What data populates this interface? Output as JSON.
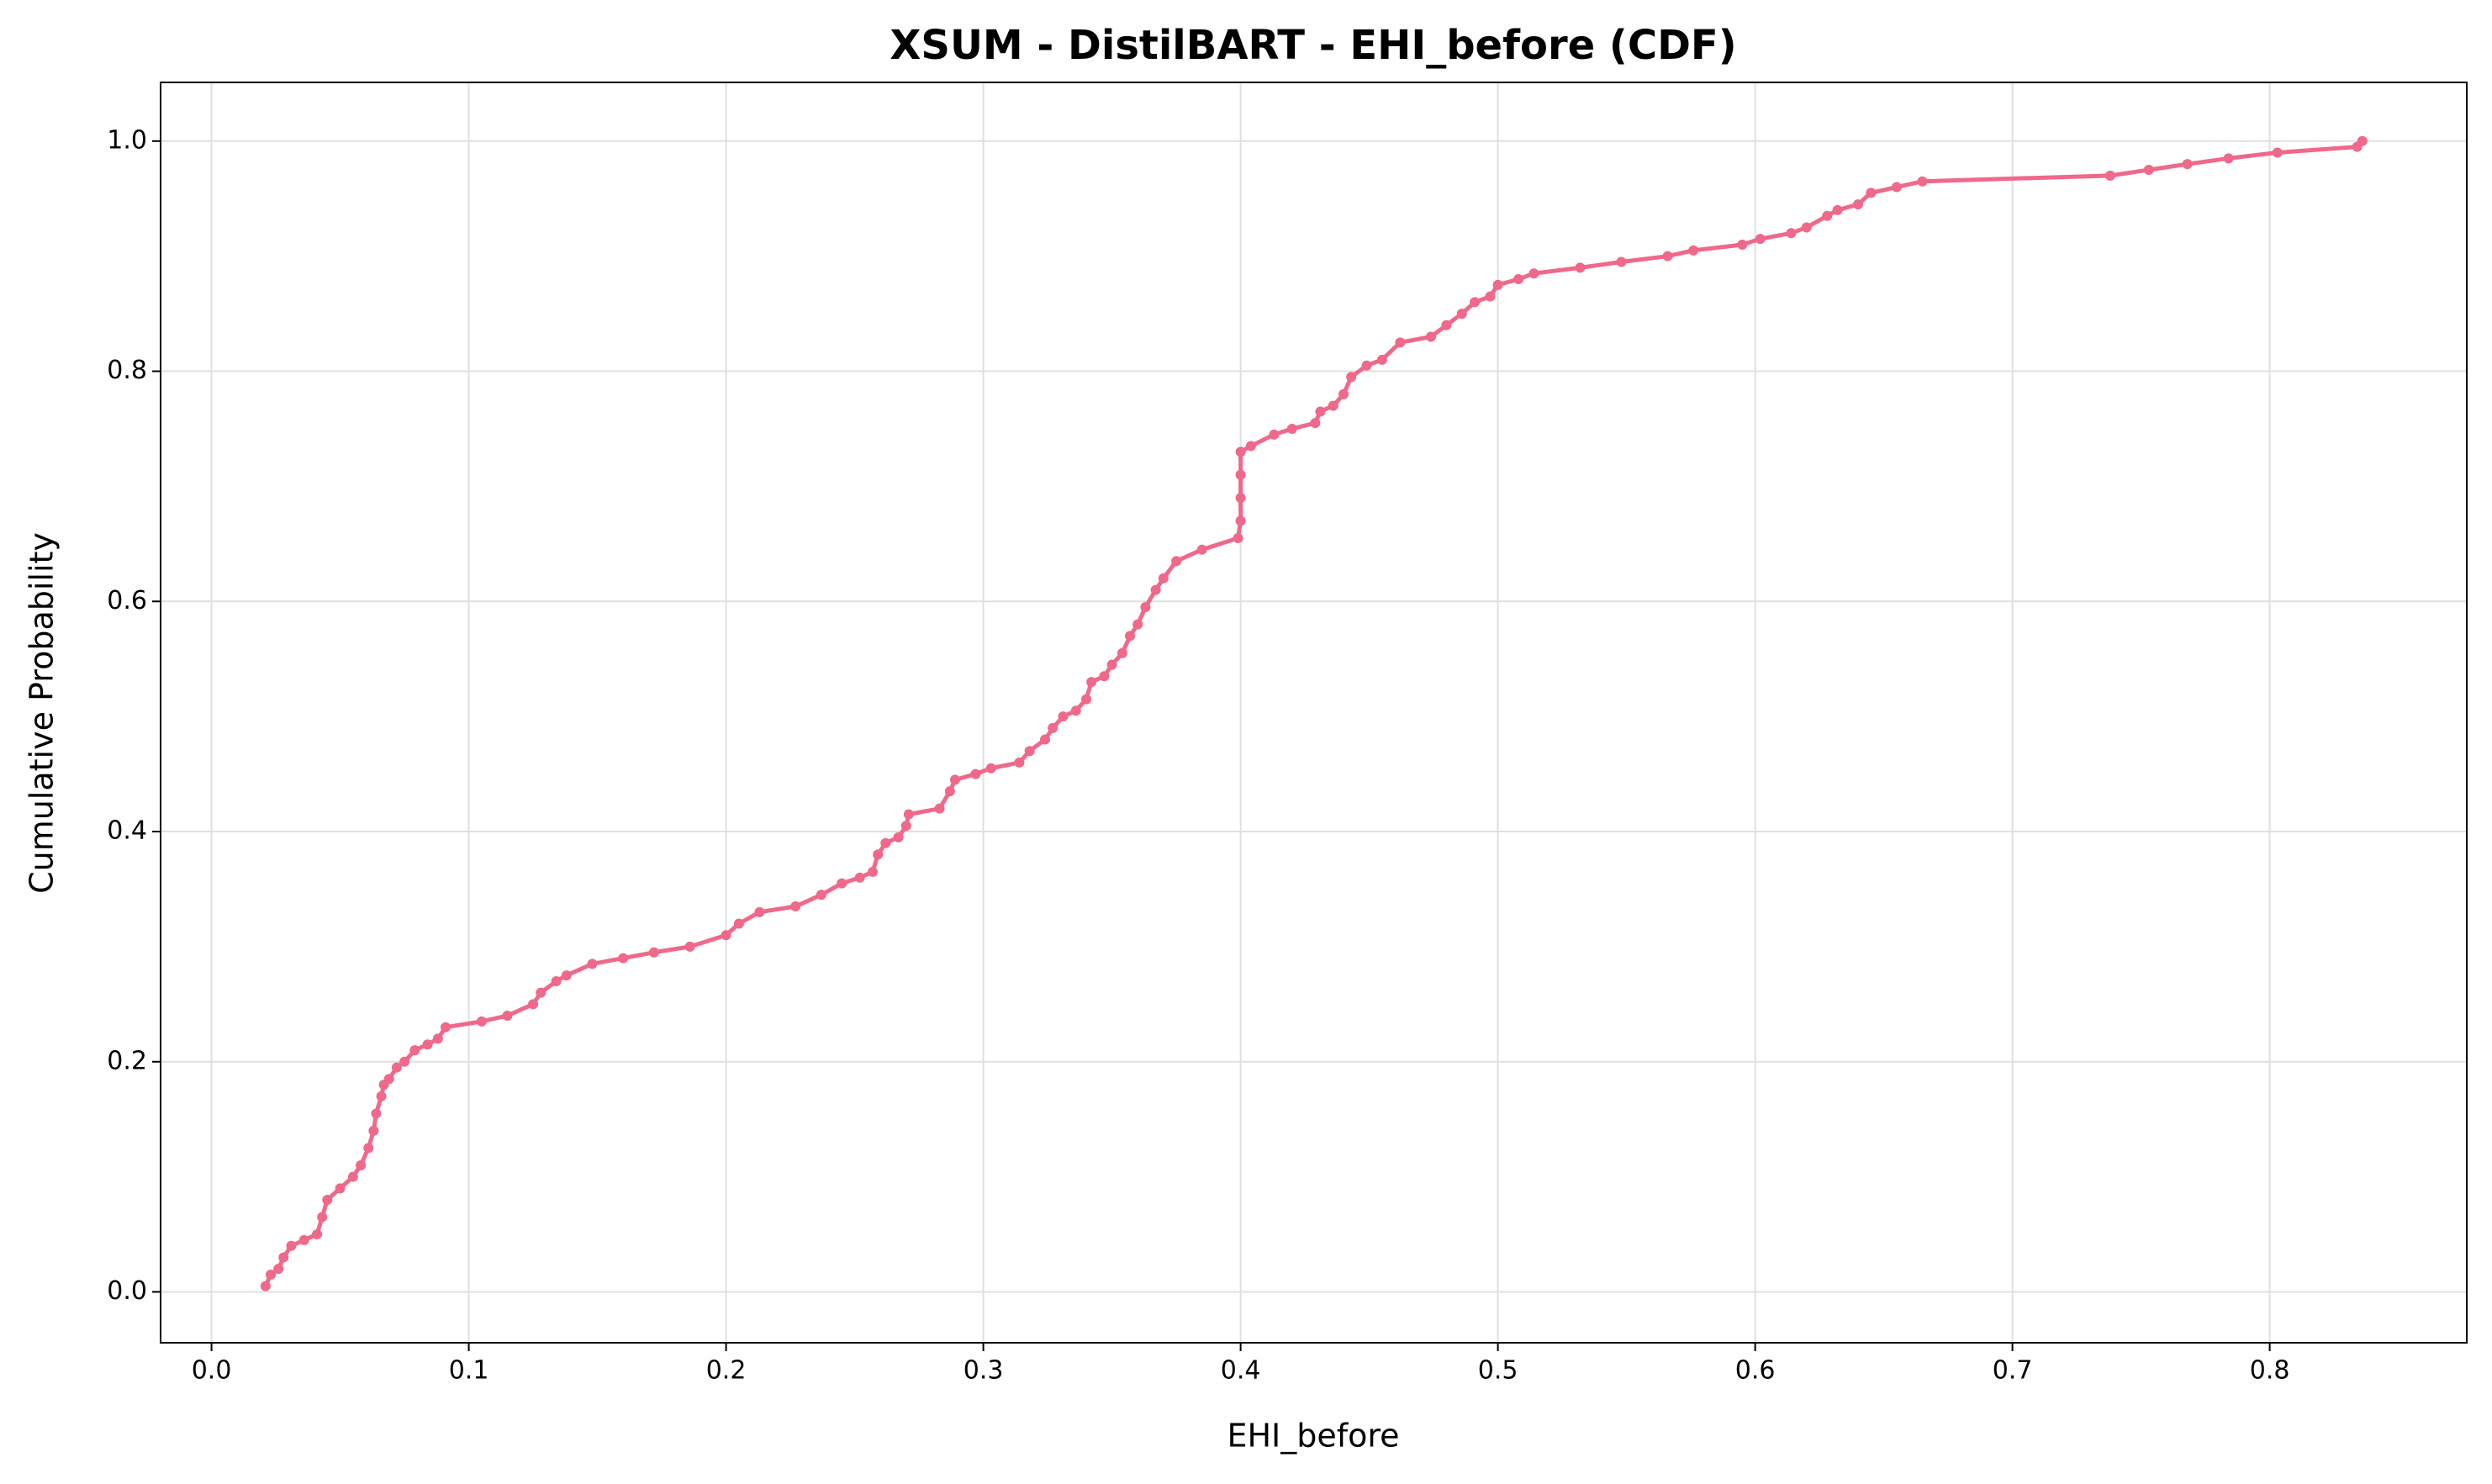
{
  "chart_data": {
    "type": "line",
    "title": "XSUM - DistilBART - EHI_before (CDF)",
    "x_label": "EHI_before",
    "y_label": "Cumulative Probability",
    "grid": true,
    "markers": true,
    "xlim": [
      -0.0198,
      0.8766
    ],
    "ylim": [
      -0.0442,
      1.051
    ],
    "xticks": [
      {
        "value": 0,
        "label": "0.0"
      },
      0.1,
      0.2,
      0.3,
      0.4,
      0.5,
      0.6,
      0.7,
      0.8
    ],
    "yticks": [
      {
        "value": 0,
        "label": "0.0"
      },
      0.2,
      0.4,
      0.6,
      0.8,
      {
        "value": 1,
        "label": "1.0"
      }
    ],
    "series": [
      {
        "color": "#f0688a",
        "x": [
          0.021,
          0.023,
          0.026,
          0.028,
          0.031,
          0.036,
          0.041,
          0.043,
          0.045,
          0.05,
          0.055,
          0.058,
          0.061,
          0.063,
          0.064,
          0.066,
          0.067,
          0.069,
          0.072,
          0.075,
          0.079,
          0.084,
          0.088,
          0.091,
          0.105,
          0.115,
          0.125,
          0.128,
          0.134,
          0.138,
          0.148,
          0.16,
          0.172,
          0.186,
          0.2,
          0.205,
          0.213,
          0.227,
          0.237,
          0.245,
          0.252,
          0.257,
          0.259,
          0.262,
          0.267,
          0.27,
          0.271,
          0.283,
          0.287,
          0.289,
          0.297,
          0.303,
          0.314,
          0.318,
          0.324,
          0.327,
          0.331,
          0.336,
          0.34,
          0.342,
          0.347,
          0.35,
          0.354,
          0.357,
          0.36,
          0.363,
          0.367,
          0.37,
          0.375,
          0.385,
          0.399,
          0.4,
          0.4,
          0.4,
          0.4,
          0.404,
          0.413,
          0.42,
          0.429,
          0.431,
          0.436,
          0.44,
          0.443,
          0.449,
          0.455,
          0.462,
          0.474,
          0.48,
          0.486,
          0.491,
          0.497,
          0.5,
          0.508,
          0.514,
          0.532,
          0.548,
          0.566,
          0.576,
          0.595,
          0.602,
          0.614,
          0.62,
          0.628,
          0.632,
          0.64,
          0.645,
          0.655,
          0.665,
          0.738,
          0.753,
          0.768,
          0.784,
          0.803,
          0.834,
          0.836
        ],
        "values": [
          0.005,
          0.015,
          0.02,
          0.03,
          0.04,
          0.045,
          0.05,
          0.065,
          0.08,
          0.09,
          0.1,
          0.11,
          0.125,
          0.14,
          0.155,
          0.17,
          0.18,
          0.185,
          0.195,
          0.2,
          0.21,
          0.215,
          0.22,
          0.23,
          0.235,
          0.24,
          0.25,
          0.26,
          0.27,
          0.275,
          0.285,
          0.29,
          0.295,
          0.3,
          0.31,
          0.32,
          0.33,
          0.335,
          0.345,
          0.355,
          0.36,
          0.365,
          0.38,
          0.39,
          0.395,
          0.405,
          0.415,
          0.42,
          0.435,
          0.445,
          0.45,
          0.455,
          0.46,
          0.47,
          0.48,
          0.49,
          0.5,
          0.505,
          0.515,
          0.53,
          0.535,
          0.545,
          0.555,
          0.57,
          0.58,
          0.595,
          0.61,
          0.62,
          0.635,
          0.645,
          0.655,
          0.67,
          0.69,
          0.71,
          0.73,
          0.735,
          0.745,
          0.75,
          0.755,
          0.765,
          0.77,
          0.78,
          0.795,
          0.805,
          0.81,
          0.825,
          0.83,
          0.84,
          0.85,
          0.86,
          0.865,
          0.875,
          0.88,
          0.885,
          0.89,
          0.895,
          0.9,
          0.905,
          0.91,
          0.915,
          0.92,
          0.925,
          0.935,
          0.94,
          0.945,
          0.955,
          0.96,
          0.965,
          0.97,
          0.975,
          0.98,
          0.985,
          0.99,
          0.995,
          1.0
        ]
      }
    ]
  }
}
